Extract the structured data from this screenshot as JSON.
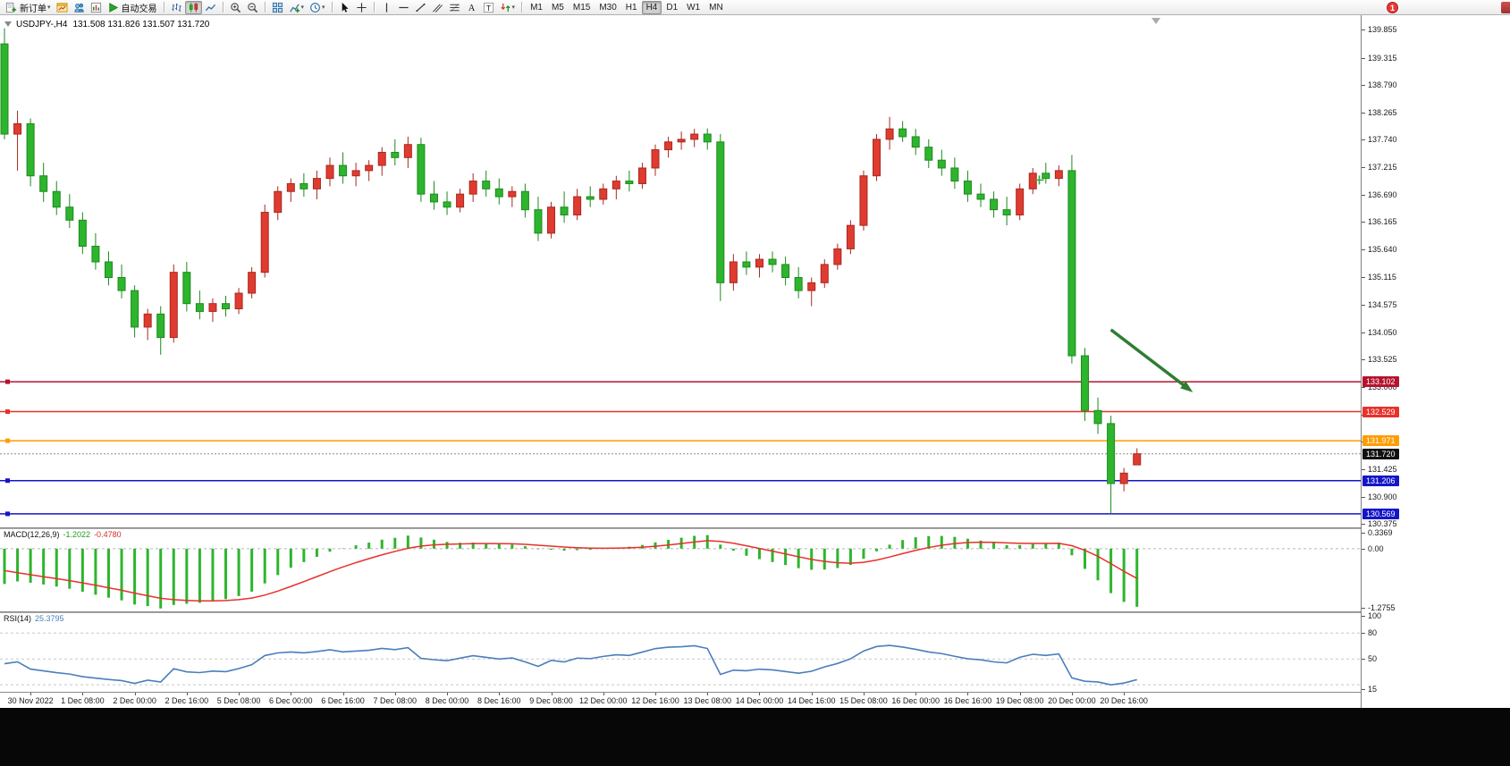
{
  "toolbar": {
    "notification_count": "1",
    "groups": [
      {
        "name": "trade",
        "buttons": [
          {
            "name": "new-order-button",
            "icon": "new-order",
            "label": "新订单",
            "dropdown": true
          },
          {
            "name": "charts-window-button",
            "icon": "window-chart"
          },
          {
            "name": "profiles-button",
            "icon": "profiles"
          },
          {
            "name": "market-watch-button",
            "icon": "market-watch"
          },
          {
            "name": "auto-trading-button",
            "icon": "play",
            "label": "自动交易"
          }
        ]
      },
      {
        "name": "chart-type",
        "buttons": [
          {
            "name": "bar-chart-button",
            "icon": "bars"
          },
          {
            "name": "candlestick-chart-button",
            "icon": "candles",
            "active": true
          },
          {
            "name": "line-chart-button",
            "icon": "line"
          }
        ]
      },
      {
        "name": "zoom",
        "buttons": [
          {
            "name": "zoom-in-button",
            "icon": "zoom-in"
          },
          {
            "name": "zoom-out-button",
            "icon": "zoom-out"
          }
        ]
      },
      {
        "name": "windows",
        "buttons": [
          {
            "name": "tile-windows-button",
            "icon": "tile"
          },
          {
            "name": "indicators-button",
            "icon": "indicators",
            "dropdown": true
          },
          {
            "name": "periods-button",
            "icon": "clock",
            "dropdown": true
          }
        ]
      },
      {
        "name": "cursor-tools",
        "buttons": [
          {
            "name": "cursor-button",
            "icon": "cursor"
          },
          {
            "name": "crosshair-button",
            "icon": "crosshair"
          }
        ]
      },
      {
        "name": "draw-tools",
        "buttons": [
          {
            "name": "vertical-line-button",
            "icon": "vline"
          },
          {
            "name": "horizontal-line-button",
            "icon": "hline"
          },
          {
            "name": "trendline-button",
            "icon": "trendline"
          },
          {
            "name": "channel-button",
            "icon": "channel"
          },
          {
            "name": "fibonacci-button",
            "icon": "fibo"
          },
          {
            "name": "text-button",
            "icon": "textA"
          },
          {
            "name": "label-button",
            "icon": "textT"
          },
          {
            "name": "arrows-button",
            "icon": "arrows",
            "dropdown": true
          }
        ]
      },
      {
        "name": "timeframes",
        "timeframe_buttons": [
          {
            "name": "tf-m1",
            "label": "M1"
          },
          {
            "name": "tf-m5",
            "label": "M5"
          },
          {
            "name": "tf-m15",
            "label": "M15"
          },
          {
            "name": "tf-m30",
            "label": "M30"
          },
          {
            "name": "tf-h1",
            "label": "H1"
          },
          {
            "name": "tf-h4",
            "label": "H4",
            "active": true
          },
          {
            "name": "tf-d1",
            "label": "D1"
          },
          {
            "name": "tf-w1",
            "label": "W1"
          },
          {
            "name": "tf-mn",
            "label": "MN"
          }
        ]
      }
    ]
  },
  "chart": {
    "title_symbol_period": "USDJPY-,H4",
    "title_ohlc": "131.508 131.826 131.507 131.720"
  },
  "chart_data": {
    "type": "candlestick",
    "symbol": "USDJPY-",
    "timeframe": "H4",
    "colors": {
      "up": "#e03b30",
      "up_stroke": "#a8281f",
      "down": "#2db52d",
      "down_stroke": "#1d8a1d",
      "background": "#ffffff"
    },
    "price_axis": {
      "ticks": [
        "139.855",
        "139.315",
        "138.790",
        "138.265",
        "137.740",
        "137.215",
        "136.690",
        "136.165",
        "135.640",
        "135.115",
        "134.575",
        "134.050",
        "133.525",
        "133.000",
        "132.475",
        "131.950",
        "131.425",
        "130.900",
        "130.375"
      ],
      "top_price": 140.13,
      "bottom_price": 130.31
    },
    "candles": [
      [
        139.58,
        139.88,
        137.75,
        137.85
      ],
      [
        137.85,
        138.3,
        137.15,
        138.05
      ],
      [
        138.05,
        138.15,
        136.85,
        137.05
      ],
      [
        137.05,
        137.3,
        136.55,
        136.75
      ],
      [
        136.75,
        136.95,
        136.3,
        136.45
      ],
      [
        136.45,
        136.7,
        136.05,
        136.2
      ],
      [
        136.2,
        136.35,
        135.55,
        135.7
      ],
      [
        135.7,
        135.95,
        135.25,
        135.4
      ],
      [
        135.4,
        135.6,
        134.95,
        135.1
      ],
      [
        135.1,
        135.35,
        134.7,
        134.85
      ],
      [
        134.85,
        134.95,
        133.95,
        134.15
      ],
      [
        134.15,
        134.5,
        133.9,
        134.4
      ],
      [
        134.4,
        134.55,
        133.62,
        133.95
      ],
      [
        133.95,
        135.35,
        133.85,
        135.2
      ],
      [
        135.2,
        135.4,
        134.45,
        134.6
      ],
      [
        134.6,
        134.85,
        134.3,
        134.45
      ],
      [
        134.45,
        134.7,
        134.25,
        134.6
      ],
      [
        134.6,
        134.75,
        134.35,
        134.5
      ],
      [
        134.5,
        134.9,
        134.4,
        134.8
      ],
      [
        134.8,
        135.3,
        134.7,
        135.2
      ],
      [
        135.2,
        136.5,
        135.1,
        136.35
      ],
      [
        136.35,
        136.85,
        136.2,
        136.75
      ],
      [
        136.75,
        137.0,
        136.55,
        136.9
      ],
      [
        136.9,
        137.1,
        136.65,
        136.8
      ],
      [
        136.8,
        137.15,
        136.6,
        137.0
      ],
      [
        137.0,
        137.4,
        136.85,
        137.25
      ],
      [
        137.25,
        137.5,
        136.9,
        137.05
      ],
      [
        137.05,
        137.3,
        136.85,
        137.15
      ],
      [
        137.15,
        137.35,
        136.95,
        137.25
      ],
      [
        137.25,
        137.6,
        137.05,
        137.5
      ],
      [
        137.5,
        137.75,
        137.25,
        137.4
      ],
      [
        137.4,
        137.8,
        137.2,
        137.65
      ],
      [
        137.65,
        137.78,
        136.55,
        136.7
      ],
      [
        136.7,
        136.95,
        136.4,
        136.55
      ],
      [
        136.55,
        136.75,
        136.3,
        136.45
      ],
      [
        136.45,
        136.8,
        136.35,
        136.7
      ],
      [
        136.7,
        137.1,
        136.55,
        136.95
      ],
      [
        136.95,
        137.15,
        136.65,
        136.8
      ],
      [
        136.8,
        137.0,
        136.5,
        136.65
      ],
      [
        136.65,
        136.85,
        136.45,
        136.75
      ],
      [
        136.75,
        136.9,
        136.25,
        136.4
      ],
      [
        136.4,
        136.65,
        135.8,
        135.95
      ],
      [
        135.95,
        136.55,
        135.85,
        136.45
      ],
      [
        136.45,
        136.75,
        136.15,
        136.3
      ],
      [
        136.3,
        136.8,
        136.2,
        136.65
      ],
      [
        136.65,
        136.85,
        136.45,
        136.6
      ],
      [
        136.6,
        136.9,
        136.5,
        136.8
      ],
      [
        136.8,
        137.05,
        136.6,
        136.95
      ],
      [
        136.95,
        137.15,
        136.75,
        136.9
      ],
      [
        136.9,
        137.3,
        136.8,
        137.2
      ],
      [
        137.2,
        137.65,
        137.05,
        137.55
      ],
      [
        137.55,
        137.8,
        137.4,
        137.7
      ],
      [
        137.7,
        137.9,
        137.55,
        137.75
      ],
      [
        137.75,
        137.95,
        137.6,
        137.85
      ],
      [
        137.85,
        137.96,
        137.55,
        137.7
      ],
      [
        137.7,
        137.85,
        134.65,
        135.0
      ],
      [
        135.0,
        135.55,
        134.85,
        135.4
      ],
      [
        135.4,
        135.6,
        135.15,
        135.3
      ],
      [
        135.3,
        135.55,
        135.1,
        135.45
      ],
      [
        135.45,
        135.6,
        135.2,
        135.35
      ],
      [
        135.35,
        135.5,
        134.95,
        135.1
      ],
      [
        135.1,
        135.3,
        134.7,
        134.85
      ],
      [
        134.85,
        135.1,
        134.55,
        135.0
      ],
      [
        135.0,
        135.45,
        134.9,
        135.35
      ],
      [
        135.35,
        135.75,
        135.25,
        135.65
      ],
      [
        135.65,
        136.2,
        135.55,
        136.1
      ],
      [
        136.1,
        137.15,
        136.0,
        137.05
      ],
      [
        137.05,
        137.85,
        136.95,
        137.75
      ],
      [
        137.75,
        138.18,
        137.55,
        137.95
      ],
      [
        137.95,
        138.1,
        137.7,
        137.8
      ],
      [
        137.8,
        137.95,
        137.45,
        137.6
      ],
      [
        137.6,
        137.75,
        137.2,
        137.35
      ],
      [
        137.35,
        137.55,
        137.05,
        137.2
      ],
      [
        137.2,
        137.4,
        136.8,
        136.95
      ],
      [
        136.95,
        137.15,
        136.55,
        136.7
      ],
      [
        136.7,
        136.9,
        136.45,
        136.6
      ],
      [
        136.6,
        136.75,
        136.25,
        136.4
      ],
      [
        136.4,
        136.65,
        136.1,
        136.3
      ],
      [
        136.3,
        136.9,
        136.2,
        136.8
      ],
      [
        136.8,
        137.2,
        136.7,
        137.1
      ],
      [
        137.1,
        137.3,
        136.9,
        137.0
      ],
      [
        137.0,
        137.25,
        136.85,
        137.15
      ],
      [
        137.15,
        137.45,
        133.45,
        133.6
      ],
      [
        133.6,
        133.75,
        132.35,
        132.55
      ],
      [
        132.55,
        132.8,
        132.1,
        132.3
      ],
      [
        132.3,
        132.45,
        130.57,
        131.15
      ],
      [
        131.15,
        131.45,
        131.0,
        131.35
      ],
      [
        131.508,
        131.826,
        131.507,
        131.72
      ]
    ],
    "time_axis": {
      "labels": [
        "30 Nov 2022",
        "1 Dec 08:00",
        "2 Dec 00:00",
        "2 Dec 16:00",
        "5 Dec 08:00",
        "6 Dec 00:00",
        "6 Dec 16:00",
        "7 Dec 08:00",
        "8 Dec 00:00",
        "8 Dec 16:00",
        "9 Dec 08:00",
        "12 Dec 00:00",
        "12 Dec 16:00",
        "13 Dec 08:00",
        "14 Dec 00:00",
        "14 Dec 16:00",
        "15 Dec 08:00",
        "16 Dec 00:00",
        "16 Dec 16:00",
        "19 Dec 08:00",
        "20 Dec 00:00",
        "20 Dec 16:00"
      ],
      "first_label_index": 2,
      "label_step": 4
    },
    "horizontal_lines": [
      {
        "label": "133.102",
        "price": 133.102,
        "color": "#b5122e"
      },
      {
        "label": "132.529",
        "price": 132.529,
        "color": "#e8312a"
      },
      {
        "label": "131.971",
        "price": 131.971,
        "color": "#ff9c00"
      },
      {
        "label": "131.206",
        "price": 131.206,
        "color": "#1515c8"
      },
      {
        "label": "130.569",
        "price": 130.569,
        "color": "#1515c8"
      }
    ],
    "current_price": {
      "label": "131.720",
      "price": 131.72,
      "badge_color": "#111111",
      "line_color": "#888888"
    },
    "annotations": {
      "arrow": {
        "from_index": 85,
        "from_price": 134.1,
        "to_index": 91.3,
        "to_price": 132.9,
        "color": "#2e7d32"
      },
      "cross": {
        "index": 79.5,
        "price": 136.97,
        "color": "#3aa63a"
      }
    },
    "macd": {
      "name": "MACD(12,26,9)",
      "value_main": "-1.2022",
      "value_signal": "-0.4780",
      "value_main_num": -1.2022,
      "value_signal_num": -0.478,
      "params": {
        "fast": 12,
        "slow": 26,
        "signal": 9
      },
      "axis_ticks": [
        "0.3369",
        "0.00",
        "-1.2755"
      ],
      "axis_max": 0.42,
      "axis_min": -1.35,
      "hist_color": "#2db52d",
      "signal_color": "#e8312a"
    },
    "rsi": {
      "name": "RSI(14)",
      "value": "25.3795",
      "value_num": 25.3795,
      "period": 14,
      "axis_ticks": [
        "100",
        "80",
        "50",
        "15"
      ],
      "axis_max": 100,
      "axis_min": 15,
      "levels": [
        80,
        50,
        20
      ],
      "line_color": "#4a7ebb"
    }
  }
}
